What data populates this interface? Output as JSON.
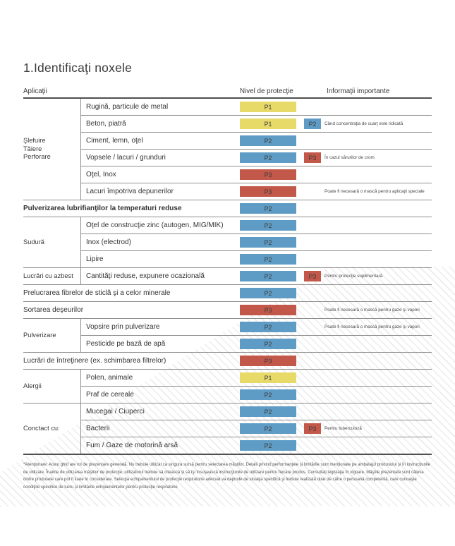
{
  "title": "1.Identificaţi noxele",
  "header": {
    "applications": "Aplicaţii",
    "protection": "Nivel de protecţie",
    "info": "Informaţii importante"
  },
  "badge_colors": {
    "P1": "#e7da68",
    "P2": "#5f9cc5",
    "P3": "#c2584a"
  },
  "groups": [
    {
      "category": "Şlefuire\nTăiere\nPerforare",
      "rows": [
        {
          "application": "Rugină, particule de metal",
          "badge1": "P1"
        },
        {
          "application": "Beton, piatră",
          "badge1": "P1",
          "badge2": "P2",
          "info": "Când concentraţia de cuarţ este ridicată"
        },
        {
          "application": "Ciment, lemn, oţel",
          "badge1": "P2"
        },
        {
          "application": "Vopsele / lacuri / grunduri",
          "badge1": "P2",
          "badge2": "P3",
          "info": "În cazul sărurilor de crom"
        },
        {
          "application": "Oţel, Inox",
          "badge1": "P3"
        },
        {
          "application": "Lacuri împotriva depunerilor",
          "badge1": "P3",
          "info": "Poate fi necesară o mască pentru aplicaţii speciale"
        }
      ]
    },
    {
      "category": null,
      "rows": [
        {
          "application": "Pulverizarea lubrifianţilor la temperaturi reduse",
          "bold": true,
          "badge1": "P2"
        }
      ]
    },
    {
      "category": "Sudură",
      "rows": [
        {
          "application": "Oţel de construcţie zinc (autogen, MIG/MIK)",
          "badge1": "P2"
        },
        {
          "application": "Inox (electrod)",
          "badge1": "P2"
        },
        {
          "application": "Lipire",
          "badge1": "P2"
        }
      ]
    },
    {
      "category": "Lucrări cu azbest",
      "rows": [
        {
          "application": "Cantităţi reduse, expunere ocazională",
          "badge1": "P2",
          "badge2": "P3",
          "info": "Pentru protecţie suplimentară"
        }
      ]
    },
    {
      "category": null,
      "rows": [
        {
          "application": "Prelucrarea fibrelor de sticlă şi a celor minerale",
          "badge1": "P2"
        }
      ]
    },
    {
      "category": null,
      "rows": [
        {
          "application": "Sortarea deşeurilor",
          "badge1": "P3",
          "info": "Poate fi necesară o mască pentru gaze şi vapori"
        }
      ]
    },
    {
      "category": "Pulverizare",
      "rows": [
        {
          "application": "Vopsire prin pulverizare",
          "badge1": "P2",
          "info": "Poate fi necesară o mască pentru gaze şi vapori"
        },
        {
          "application": "Pesticide pe bază de apă",
          "badge1": "P2"
        }
      ]
    },
    {
      "category": null,
      "rows": [
        {
          "application": "Lucrări de întreţinere (ex. schimbarea filtrelor)",
          "badge1": "P3"
        }
      ]
    },
    {
      "category": "Alergii",
      "rows": [
        {
          "application": "Polen, animale",
          "badge1": "P1"
        },
        {
          "application": "Praf de cereale",
          "badge1": "P2"
        }
      ]
    },
    {
      "category": "Conctact cu:",
      "rows": [
        {
          "application": "Mucegai / Ciuperci",
          "badge1": "P2"
        },
        {
          "application": "Bacterii",
          "badge1": "P2",
          "badge2": "P3",
          "info": "Pentru tuberculoză"
        },
        {
          "application": "Fum / Gaze de motorină arsă",
          "badge1": "P2"
        }
      ]
    }
  ],
  "footnote": "*Atenţionare: Acest ghid are rol de prezentare generală. Nu trebuie utilizat ca singura sursă pentru selectarea măştilor. Detalii privind performanţele şi limitările sunt menţionate pe ambalajul produsului şi în instrucţiunile de utilizare. Înainte de utilizarea măştilor de protecţie, utilizatorul trebuie să citească şi să îşi însuşească instrucţiunile de utilizare pentru fiecare produs. Consultaţi legislaţia în vigoare. Măştile prezentate sunt câteva dintre produsele care pot fi luate în considerare. Selecţia echipamentului de protecţie respiratorie adecvat va depinde de situaţia specifică şi trebuie realizată doar de către o persoană competentă, care cunoaşte condiţiile specifice de lucru şi limitările echipamentelor pentru protecţie respiratorie"
}
